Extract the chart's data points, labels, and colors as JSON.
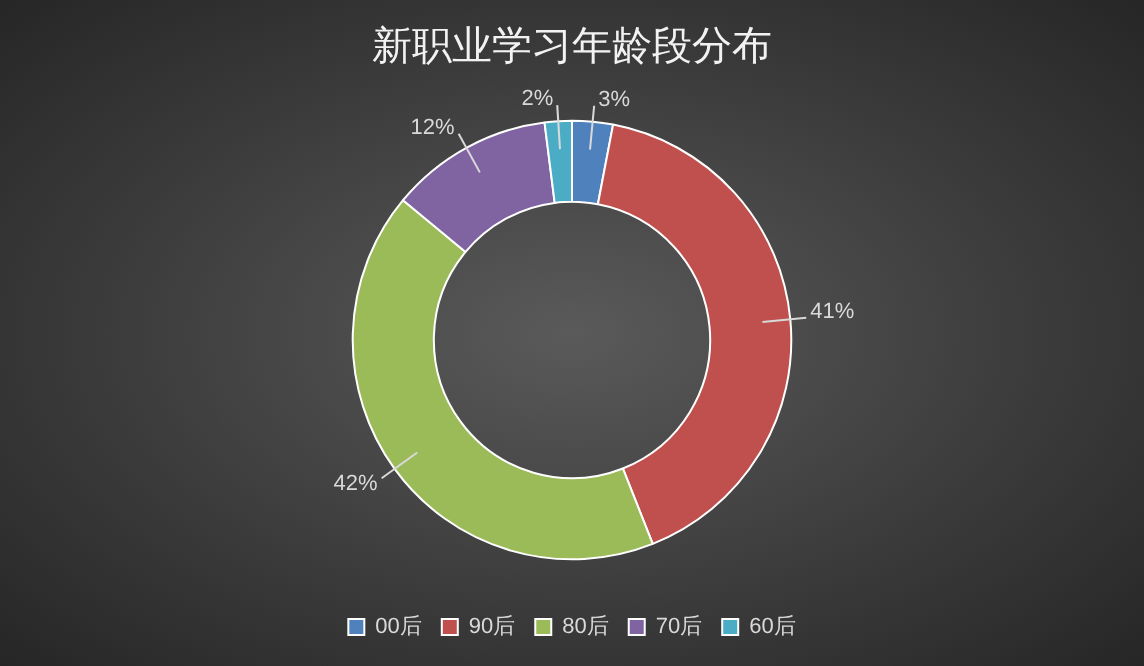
{
  "chart_data": {
    "type": "donut",
    "title": "新职业学习年龄段分布",
    "categories": [
      "00后",
      "90后",
      "80后",
      "70后",
      "60后"
    ],
    "values": [
      3,
      41,
      42,
      12,
      2
    ],
    "colors": [
      "#4f81bd",
      "#c0504d",
      "#9bbb59",
      "#8064a2",
      "#4bacc6"
    ],
    "value_labels": [
      "3%",
      "41%",
      "42%",
      "12%",
      "2%"
    ],
    "legend": "bottom"
  }
}
